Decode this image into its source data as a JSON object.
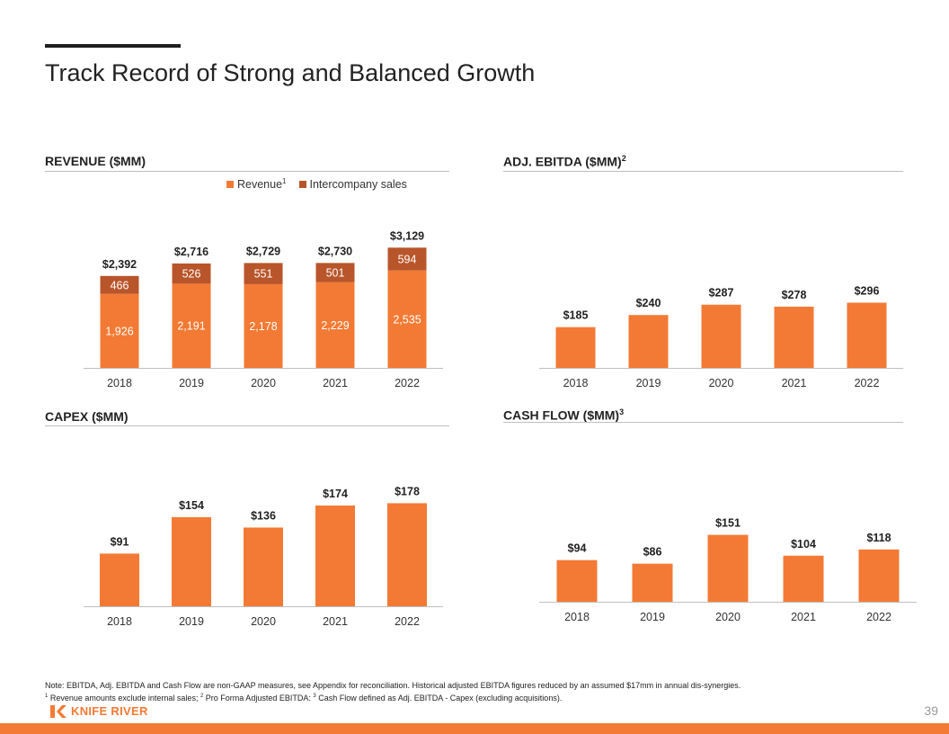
{
  "page": {
    "title": "Track Record of Strong and Balanced Growth",
    "page_number": "39"
  },
  "colors": {
    "primary": "#F37A34",
    "secondary": "#B8552A",
    "axis": "#bfbfbf",
    "text": "#222222"
  },
  "panels": {
    "revenue": {
      "title": "REVENUE ($MM)",
      "sup": ""
    },
    "ebitda": {
      "title": "ADJ. EBITDA ($MM)",
      "sup": "2"
    },
    "capex": {
      "title": "CAPEX ($MM)",
      "sup": ""
    },
    "cashflow": {
      "title": "CASH FLOW ($MM)",
      "sup": "3"
    }
  },
  "legend": {
    "revenue_label": "Revenue",
    "revenue_sup": "1",
    "intercompany_label": "Intercompany sales"
  },
  "notes": {
    "line1": "Note: EBITDA, Adj. EBITDA and Cash Flow are non-GAAP measures, see Appendix for reconciliation. Historical adjusted EBITDA figures reduced by an assumed $17mm in annual dis-synergies.",
    "line2_sup1": "1",
    "line2_part1": " Revenue amounts exclude internal sales; ",
    "line2_sup2": "2",
    "line2_part2": " Pro Forma Adjusted EBITDA: ",
    "line2_sup3": "3",
    "line2_part3": " Cash Flow defined as Adj. EBITDA - Capex (excluding acquisitions)."
  },
  "logo": {
    "text": "KNIFE RIVER",
    "icon": "knife-river-logo-icon"
  },
  "chart_data": [
    {
      "id": "revenue",
      "type": "bar",
      "stacked": true,
      "categories": [
        "2018",
        "2019",
        "2020",
        "2021",
        "2022"
      ],
      "series": [
        {
          "name": "Revenue",
          "values": [
            1926,
            2191,
            2178,
            2229,
            2535
          ],
          "labels": [
            "1,926",
            "2,191",
            "2,178",
            "2,229",
            "2,535"
          ],
          "color": "#F37A34"
        },
        {
          "name": "Intercompany sales",
          "values": [
            466,
            526,
            551,
            501,
            594
          ],
          "labels": [
            "466",
            "526",
            "551",
            "501",
            "594"
          ],
          "color": "#B8552A"
        }
      ],
      "totals": [
        "$2,392",
        "$2,716",
        "$2,729",
        "$2,730",
        "$3,129"
      ],
      "ylim": [
        0,
        3300
      ]
    },
    {
      "id": "ebitda",
      "type": "bar",
      "categories": [
        "2018",
        "2019",
        "2020",
        "2021",
        "2022"
      ],
      "values": [
        185,
        240,
        287,
        278,
        296
      ],
      "labels": [
        "$185",
        "$240",
        "$287",
        "$278",
        "$296"
      ],
      "color": "#F37A34",
      "ylim": [
        0,
        390
      ]
    },
    {
      "id": "capex",
      "type": "bar",
      "categories": [
        "2018",
        "2019",
        "2020",
        "2021",
        "2022"
      ],
      "values": [
        91,
        154,
        136,
        174,
        178
      ],
      "labels": [
        "$91",
        "$154",
        "$136",
        "$174",
        "$178"
      ],
      "color": "#F37A34",
      "ylim": [
        0,
        220
      ]
    },
    {
      "id": "cashflow",
      "type": "bar",
      "categories": [
        "2018",
        "2019",
        "2020",
        "2021",
        "2022"
      ],
      "values": [
        94,
        86,
        151,
        104,
        118
      ],
      "labels": [
        "$94",
        "$86",
        "$151",
        "$104",
        "$118"
      ],
      "color": "#F37A34",
      "ylim": [
        0,
        190
      ]
    }
  ]
}
